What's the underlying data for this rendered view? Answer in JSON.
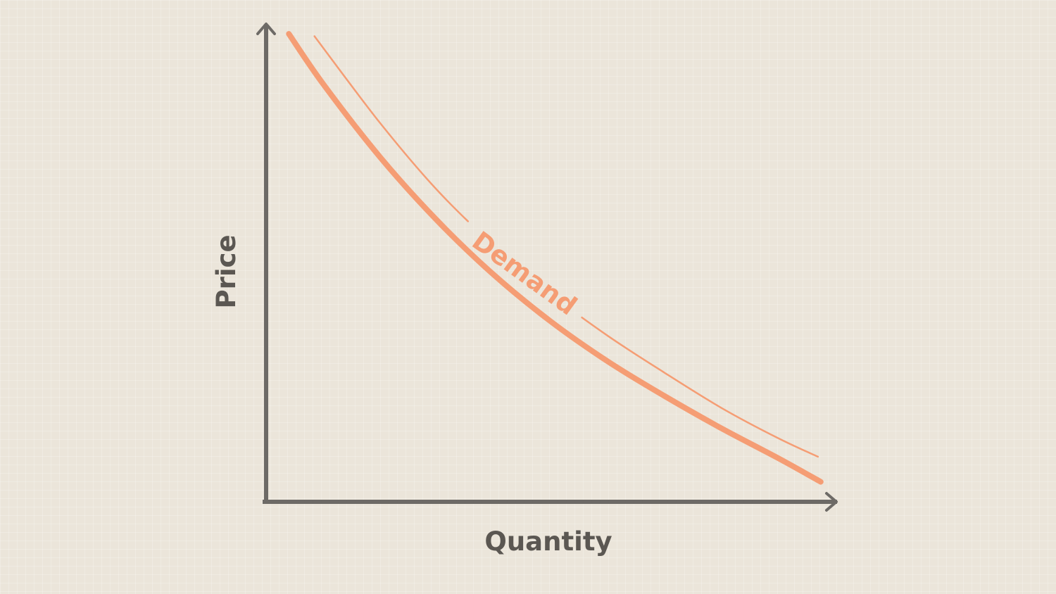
{
  "chart_data": {
    "type": "line",
    "title": "",
    "xlabel": "Quantity",
    "ylabel": "Price",
    "xlim": [
      0,
      10
    ],
    "ylim": [
      0,
      10
    ],
    "grid": false,
    "tick_labels": false,
    "series": [
      {
        "name": "Demand",
        "x": [
          0.4,
          1.0,
          2.0,
          3.0,
          4.0,
          5.0,
          6.0,
          7.0,
          8.0,
          9.0,
          9.75
        ],
        "y": [
          9.85,
          8.8,
          7.26,
          5.93,
          4.78,
          3.8,
          2.96,
          2.23,
          1.55,
          0.92,
          0.42
        ]
      }
    ],
    "label_curve": {
      "x": [
        0.85,
        2.0,
        3.0,
        4.0,
        5.0,
        6.0,
        7.0,
        8.0,
        9.0,
        9.7
      ],
      "y": [
        9.8,
        7.98,
        6.57,
        5.4,
        4.38,
        3.5,
        2.72,
        1.98,
        1.34,
        0.95
      ]
    }
  },
  "colors": {
    "background": "#ebe5da",
    "axis": "#6d6a66",
    "axis_title": "#5b5752",
    "curve": "#f59d74"
  }
}
